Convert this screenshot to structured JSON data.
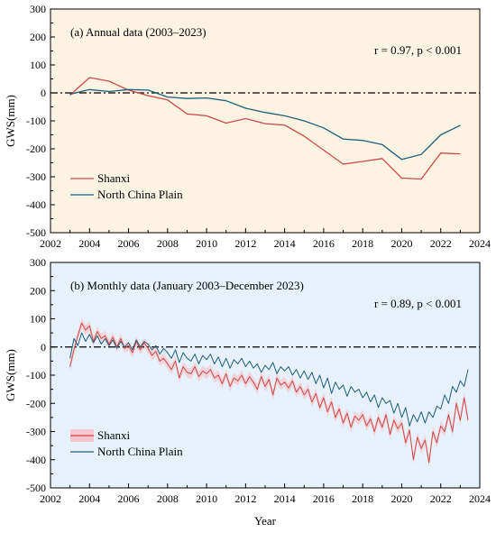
{
  "colors": {
    "shanxi": "#cd4a4a",
    "ncp": "#1f5f7a",
    "panel_a_bg": "#fdf3e3",
    "panel_b_bg": "#e7f1fb",
    "band": "#f7c6cc"
  },
  "chart_data": [
    {
      "type": "line",
      "title": "(a) Annual data (2003–2023)",
      "stat": "r = 0.97, p < 0.001",
      "xlabel": "",
      "ylabel": "GWS(mm)",
      "xlim": [
        2002,
        2024
      ],
      "ylim": [
        -500,
        300
      ],
      "xticks": [
        2002,
        2004,
        2006,
        2008,
        2010,
        2012,
        2014,
        2016,
        2018,
        2020,
        2022,
        2024
      ],
      "yticks": [
        -500,
        -400,
        -300,
        -200,
        -100,
        0,
        100,
        200,
        300
      ],
      "legend_position": "bottom-left",
      "reference_line": 0,
      "series": [
        {
          "name": "Shanxi",
          "color": "#cd4a4a",
          "x": [
            2003,
            2004,
            2005,
            2006,
            2007,
            2008,
            2009,
            2010,
            2011,
            2012,
            2013,
            2014,
            2015,
            2016,
            2017,
            2018,
            2019,
            2020,
            2021,
            2022,
            2023
          ],
          "values": [
            -8,
            55,
            42,
            10,
            -10,
            -25,
            -75,
            -82,
            -108,
            -92,
            -110,
            -115,
            -155,
            -205,
            -255,
            -245,
            -235,
            -305,
            -308,
            -215,
            -218
          ]
        },
        {
          "name": "North China Plain",
          "color": "#1f5f7a",
          "x": [
            2003,
            2004,
            2005,
            2006,
            2007,
            2008,
            2009,
            2010,
            2011,
            2012,
            2013,
            2014,
            2015,
            2016,
            2017,
            2018,
            2019,
            2020,
            2021,
            2022,
            2023
          ],
          "values": [
            -5,
            12,
            5,
            12,
            10,
            -15,
            -20,
            -18,
            -28,
            -55,
            -70,
            -82,
            -100,
            -125,
            -165,
            -170,
            -185,
            -238,
            -220,
            -150,
            -116
          ]
        }
      ]
    },
    {
      "type": "line",
      "title": "(b) Monthly data (January 2003–December 2023)",
      "stat": "r = 0.89, p < 0.001",
      "xlabel": "Year",
      "ylabel": "GWS(mm)",
      "xlim": [
        2002,
        2024
      ],
      "ylim": [
        -500,
        300
      ],
      "xticks": [
        2002,
        2004,
        2006,
        2008,
        2010,
        2012,
        2014,
        2016,
        2018,
        2020,
        2022,
        2024
      ],
      "yticks": [
        -500,
        -400,
        -300,
        -200,
        -100,
        0,
        100,
        200,
        300
      ],
      "legend_position": "bottom-left",
      "reference_line": 0,
      "series": [
        {
          "name": "Shanxi",
          "color": "#cd4a4a",
          "x": [
            2003.0,
            2003.2,
            2003.4,
            2003.6,
            2003.8,
            2004.0,
            2004.2,
            2004.4,
            2004.6,
            2004.8,
            2005.0,
            2005.2,
            2005.4,
            2005.6,
            2005.8,
            2006.0,
            2006.2,
            2006.4,
            2006.6,
            2006.8,
            2007.0,
            2007.2,
            2007.4,
            2007.6,
            2007.8,
            2008.0,
            2008.2,
            2008.4,
            2008.6,
            2008.8,
            2009.0,
            2009.2,
            2009.4,
            2009.6,
            2009.8,
            2010.0,
            2010.2,
            2010.4,
            2010.6,
            2010.8,
            2011.0,
            2011.2,
            2011.4,
            2011.6,
            2011.8,
            2012.0,
            2012.2,
            2012.4,
            2012.6,
            2012.8,
            2013.0,
            2013.2,
            2013.4,
            2013.6,
            2013.8,
            2014.0,
            2014.2,
            2014.4,
            2014.6,
            2014.8,
            2015.0,
            2015.2,
            2015.4,
            2015.6,
            2015.8,
            2016.0,
            2016.2,
            2016.4,
            2016.6,
            2016.8,
            2017.0,
            2017.2,
            2017.4,
            2017.6,
            2017.8,
            2018.0,
            2018.2,
            2018.4,
            2018.6,
            2018.8,
            2019.0,
            2019.2,
            2019.4,
            2019.6,
            2019.8,
            2020.0,
            2020.2,
            2020.4,
            2020.6,
            2020.8,
            2021.0,
            2021.2,
            2021.4,
            2021.6,
            2021.8,
            2022.0,
            2022.2,
            2022.4,
            2022.6,
            2022.8,
            2023.0,
            2023.2,
            2023.4
          ],
          "values": [
            -70,
            -10,
            40,
            85,
            60,
            75,
            20,
            55,
            30,
            40,
            10,
            35,
            0,
            30,
            -5,
            5,
            -20,
            20,
            -10,
            15,
            -5,
            -30,
            -15,
            -50,
            -40,
            -60,
            -80,
            -50,
            -110,
            -70,
            -90,
            -95,
            -70,
            -105,
            -85,
            -95,
            -80,
            -110,
            -100,
            -130,
            -95,
            -140,
            -110,
            -120,
            -100,
            -130,
            -105,
            -125,
            -150,
            -105,
            -140,
            -115,
            -170,
            -110,
            -135,
            -125,
            -145,
            -120,
            -160,
            -140,
            -170,
            -150,
            -195,
            -165,
            -215,
            -180,
            -230,
            -195,
            -250,
            -220,
            -270,
            -235,
            -285,
            -245,
            -260,
            -240,
            -280,
            -255,
            -300,
            -250,
            -285,
            -240,
            -310,
            -260,
            -290,
            -270,
            -340,
            -295,
            -400,
            -320,
            -360,
            -330,
            -410,
            -300,
            -340,
            -280,
            -300,
            -240,
            -300,
            -200,
            -260,
            -180,
            -260
          ]
        },
        {
          "name": "North China Plain",
          "color": "#1f5f7a",
          "x": [
            2003.0,
            2003.2,
            2003.4,
            2003.6,
            2003.8,
            2004.0,
            2004.2,
            2004.4,
            2004.6,
            2004.8,
            2005.0,
            2005.2,
            2005.4,
            2005.6,
            2005.8,
            2006.0,
            2006.2,
            2006.4,
            2006.6,
            2006.8,
            2007.0,
            2007.2,
            2007.4,
            2007.6,
            2007.8,
            2008.0,
            2008.2,
            2008.4,
            2008.6,
            2008.8,
            2009.0,
            2009.2,
            2009.4,
            2009.6,
            2009.8,
            2010.0,
            2010.2,
            2010.4,
            2010.6,
            2010.8,
            2011.0,
            2011.2,
            2011.4,
            2011.6,
            2011.8,
            2012.0,
            2012.2,
            2012.4,
            2012.6,
            2012.8,
            2013.0,
            2013.2,
            2013.4,
            2013.6,
            2013.8,
            2014.0,
            2014.2,
            2014.4,
            2014.6,
            2014.8,
            2015.0,
            2015.2,
            2015.4,
            2015.6,
            2015.8,
            2016.0,
            2016.2,
            2016.4,
            2016.6,
            2016.8,
            2017.0,
            2017.2,
            2017.4,
            2017.6,
            2017.8,
            2018.0,
            2018.2,
            2018.4,
            2018.6,
            2018.8,
            2019.0,
            2019.2,
            2019.4,
            2019.6,
            2019.8,
            2020.0,
            2020.2,
            2020.4,
            2020.6,
            2020.8,
            2021.0,
            2021.2,
            2021.4,
            2021.6,
            2021.8,
            2022.0,
            2022.2,
            2022.4,
            2022.6,
            2022.8,
            2023.0,
            2023.2,
            2023.4
          ],
          "values": [
            -40,
            30,
            5,
            50,
            20,
            45,
            15,
            40,
            10,
            30,
            5,
            25,
            -5,
            20,
            0,
            15,
            -10,
            25,
            0,
            20,
            10,
            -10,
            5,
            -25,
            -5,
            -20,
            -40,
            -10,
            -55,
            -20,
            -40,
            -50,
            -25,
            -60,
            -30,
            -45,
            -25,
            -60,
            -35,
            -70,
            -40,
            -75,
            -45,
            -60,
            -40,
            -70,
            -50,
            -75,
            -60,
            -90,
            -65,
            -80,
            -55,
            -95,
            -70,
            -85,
            -70,
            -100,
            -80,
            -110,
            -85,
            -115,
            -90,
            -130,
            -100,
            -145,
            -110,
            -165,
            -125,
            -150,
            -135,
            -175,
            -140,
            -160,
            -150,
            -180,
            -160,
            -195,
            -170,
            -215,
            -180,
            -200,
            -190,
            -235,
            -200,
            -250,
            -215,
            -280,
            -240,
            -265,
            -230,
            -270,
            -230,
            -250,
            -210,
            -220,
            -170,
            -200,
            -140,
            -160,
            -120,
            -140,
            -80
          ]
        }
      ]
    }
  ]
}
